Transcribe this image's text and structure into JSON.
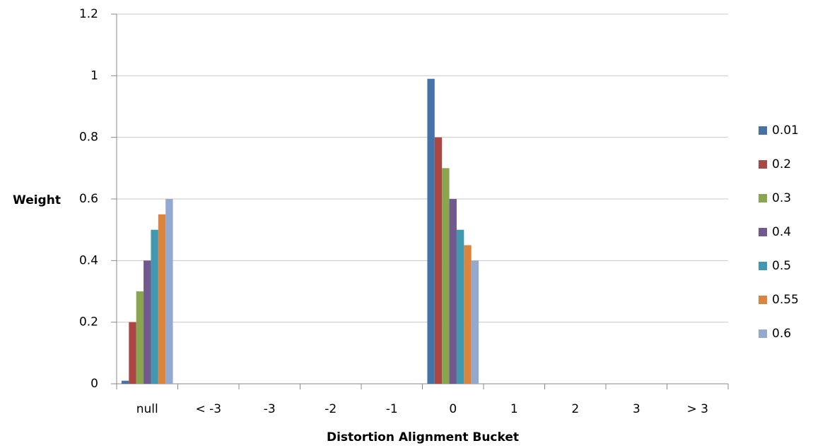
{
  "chart_data": {
    "type": "bar",
    "x_label": "Distortion Alignment Bucket",
    "y_label": "Weight",
    "categories": [
      "null",
      "< -3",
      "-3",
      "-2",
      "-1",
      "0",
      "1",
      "2",
      "3",
      "> 3"
    ],
    "series": [
      {
        "name": "0.01",
        "color": "#4572a7",
        "values": [
          0.01,
          0,
          0,
          0,
          0,
          0.99,
          0,
          0,
          0,
          0
        ]
      },
      {
        "name": "0.2",
        "color": "#aa4643",
        "values": [
          0.2,
          0,
          0,
          0,
          0,
          0.8,
          0,
          0,
          0,
          0
        ]
      },
      {
        "name": "0.3",
        "color": "#89a54e",
        "values": [
          0.3,
          0,
          0,
          0,
          0,
          0.7,
          0,
          0,
          0,
          0
        ]
      },
      {
        "name": "0.4",
        "color": "#71588f",
        "values": [
          0.4,
          0,
          0,
          0,
          0,
          0.6,
          0,
          0,
          0,
          0
        ]
      },
      {
        "name": "0.5",
        "color": "#4198af",
        "values": [
          0.5,
          0,
          0,
          0,
          0,
          0.5,
          0,
          0,
          0,
          0
        ]
      },
      {
        "name": "0.55",
        "color": "#db843d",
        "values": [
          0.55,
          0,
          0,
          0,
          0,
          0.45,
          0,
          0,
          0,
          0
        ]
      },
      {
        "name": "0.6",
        "color": "#93a9cf",
        "values": [
          0.6,
          0,
          0,
          0,
          0,
          0.4,
          0,
          0,
          0,
          0
        ]
      }
    ],
    "ylim": [
      0,
      1.2
    ],
    "yticks": [
      0,
      0.2,
      0.4,
      0.6,
      0.8,
      1,
      1.2
    ],
    "grid": true,
    "legend": "right"
  }
}
